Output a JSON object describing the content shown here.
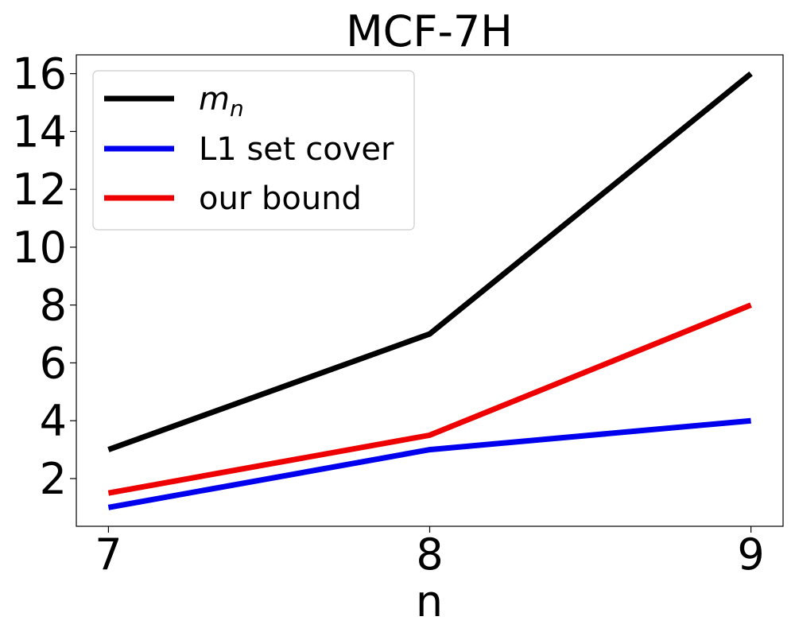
{
  "chart_data": {
    "type": "line",
    "title": "MCF-7H",
    "xlabel": "n",
    "ylabel": "",
    "x": [
      7,
      8,
      9
    ],
    "xlim": [
      6.9,
      9.1
    ],
    "ylim": [
      0.35,
      16.65
    ],
    "xticks": [
      7,
      8,
      9
    ],
    "yticks": [
      2,
      4,
      6,
      8,
      10,
      12,
      14,
      16
    ],
    "grid": false,
    "legend_position": "top-left",
    "series": [
      {
        "name_base": "m",
        "name_sub": "n",
        "color": "#000000",
        "values": [
          3,
          7,
          16
        ]
      },
      {
        "name": "L1 set cover",
        "color": "#0000ee",
        "values": [
          1,
          3,
          4
        ]
      },
      {
        "name": "our bound",
        "color": "#ee0000",
        "values": [
          1.5,
          3.5,
          8
        ]
      }
    ]
  }
}
